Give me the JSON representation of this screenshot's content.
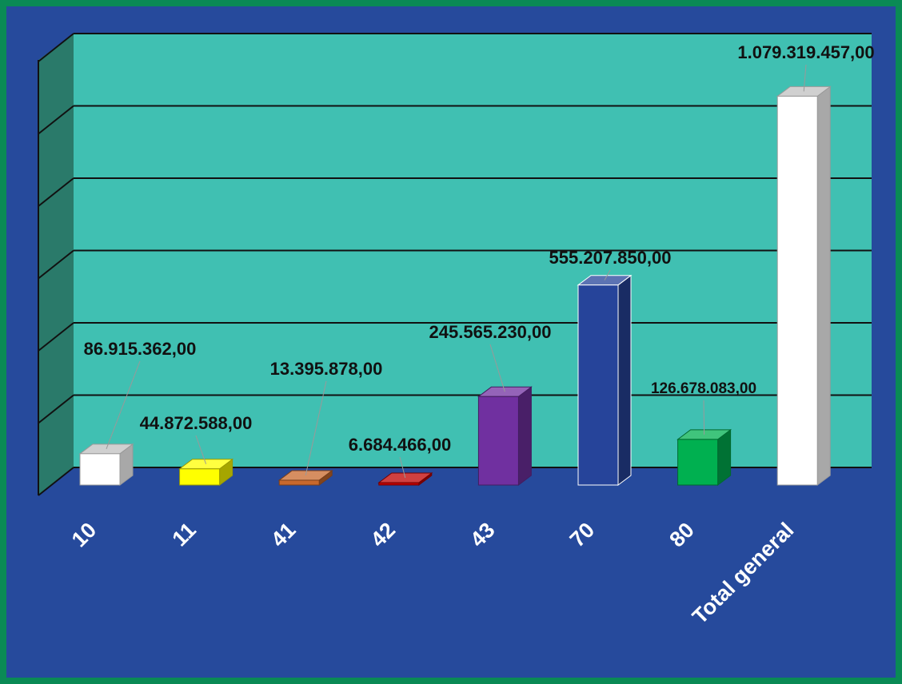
{
  "chart_data": {
    "type": "bar3d",
    "categories": [
      "10",
      "11",
      "41",
      "42",
      "43",
      "70",
      "80",
      "Total general"
    ],
    "values": [
      86915362,
      44872588,
      13395878,
      6684466,
      245565230,
      555207850,
      126678083,
      1079319457
    ],
    "value_labels": [
      "86.915.362,00",
      "44.872.588,00",
      "13.395.878,00",
      "6.684.466,00",
      "245.565.230,00",
      "555.207.850,00",
      "126.678.083,00",
      "1.079.319.457,00"
    ],
    "colors": [
      "#ffffff",
      "#ffff00",
      "#c8682c",
      "#c00000",
      "#7030a0",
      "#26449a",
      "#00b050",
      "#ffffff"
    ],
    "ylim": [
      0,
      1200000000
    ],
    "yticks": [
      0,
      200000000,
      400000000,
      600000000,
      800000000,
      1000000000,
      1200000000
    ],
    "grid": true
  }
}
